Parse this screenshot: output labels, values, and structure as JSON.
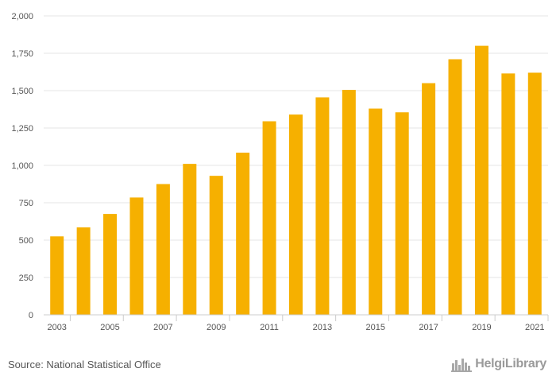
{
  "chart_data": {
    "type": "bar",
    "title": "",
    "xlabel": "",
    "ylabel": "",
    "categories": [
      "2003",
      "2004",
      "2005",
      "2006",
      "2007",
      "2008",
      "2009",
      "2010",
      "2011",
      "2012",
      "2013",
      "2014",
      "2015",
      "2016",
      "2017",
      "2018",
      "2019",
      "2020",
      "2021"
    ],
    "values": [
      525,
      585,
      675,
      785,
      875,
      1010,
      930,
      1085,
      1295,
      1340,
      1455,
      1505,
      1380,
      1355,
      1550,
      1710,
      1800,
      1615,
      1620
    ],
    "x_tick_labels": [
      "2003",
      "2005",
      "2007",
      "2009",
      "2011",
      "2013",
      "2015",
      "2017",
      "2019",
      "2021"
    ],
    "y_ticks": [
      0,
      250,
      500,
      750,
      1000,
      1250,
      1500,
      1750,
      2000
    ],
    "y_tick_labels": [
      "0",
      "250",
      "500",
      "750",
      "1,000",
      "1,250",
      "1,500",
      "1,750",
      "2,000"
    ],
    "ylim": [
      0,
      2000
    ],
    "grid": true,
    "bar_color": "#f6b000"
  },
  "footer": {
    "source": "Source: National Statistical Office",
    "brand": "HelgiLibrary",
    "brand_icon": "city-skyline-icon"
  }
}
